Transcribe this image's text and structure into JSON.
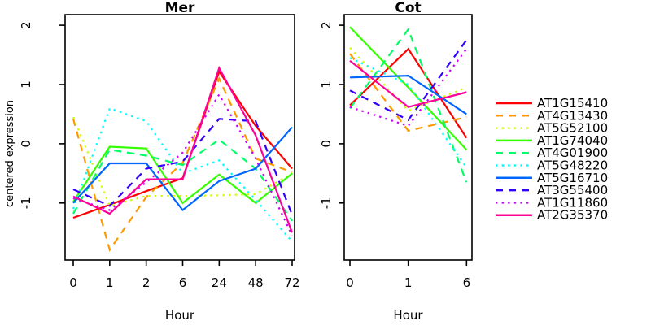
{
  "ylabel": "centered expression",
  "chart_data": [
    {
      "type": "line",
      "title": "Mer",
      "xlabel": "Hour",
      "ylabel": "centered expression",
      "x_tick_labels": [
        "0",
        "1",
        "2",
        "6",
        "24",
        "48",
        "72"
      ],
      "y_tick_labels": [
        "-1",
        "0",
        "1",
        "2"
      ],
      "y_ticks": [
        -1,
        0,
        1,
        2
      ],
      "ylim": [
        -1.95,
        2.2
      ],
      "grid": false,
      "series": [
        {
          "name": "AT1G15410",
          "color": "#FF0000",
          "linetype": "solid",
          "values": [
            -1.25,
            -1.03,
            -0.8,
            -0.58,
            1.22,
            0.3,
            -0.42
          ]
        },
        {
          "name": "AT4G13430",
          "color": "#FF9900",
          "linetype": "dashed",
          "values": [
            0.42,
            -1.79,
            -0.9,
            -0.32,
            1.1,
            -0.25,
            -0.48
          ]
        },
        {
          "name": "AT5G52100",
          "color": "#CCFF00",
          "linetype": "dotted",
          "values": [
            0.45,
            -1.05,
            -0.88,
            -0.88,
            -0.87,
            -0.85,
            -0.5
          ]
        },
        {
          "name": "AT1G74040",
          "color": "#33FF00",
          "linetype": "solid",
          "values": [
            -0.98,
            -0.05,
            -0.08,
            -1.0,
            -0.52,
            -1.0,
            -0.5
          ]
        },
        {
          "name": "AT4G01900",
          "color": "#00FF66",
          "linetype": "dashed",
          "values": [
            -1.18,
            -0.1,
            -0.2,
            -0.36,
            0.07,
            -0.42,
            -1.3
          ]
        },
        {
          "name": "AT5G48220",
          "color": "#00FFFF",
          "linetype": "dotted",
          "values": [
            -1.1,
            0.6,
            0.38,
            -0.5,
            -0.28,
            -0.95,
            -1.65
          ]
        },
        {
          "name": "AT5G16710",
          "color": "#0066FF",
          "linetype": "solid",
          "values": [
            -1.0,
            -0.33,
            -0.33,
            -1.12,
            -0.63,
            -0.42,
            0.28
          ]
        },
        {
          "name": "AT3G55400",
          "color": "#3300FF",
          "linetype": "dashed",
          "values": [
            -0.77,
            -1.05,
            -0.42,
            -0.3,
            0.42,
            0.38,
            -1.2
          ]
        },
        {
          "name": "AT1G11860",
          "color": "#CC00FF",
          "linetype": "dotted",
          "values": [
            -0.92,
            -1.12,
            -0.65,
            -0.15,
            0.83,
            -0.25,
            -1.55
          ]
        },
        {
          "name": "AT2G35370",
          "color": "#FF0099",
          "linetype": "solid",
          "values": [
            -0.89,
            -1.18,
            -0.6,
            -0.6,
            1.28,
            0.14,
            -1.5
          ]
        }
      ]
    },
    {
      "type": "line",
      "title": "Cot",
      "xlabel": "Hour",
      "ylabel": "centered expression",
      "x_tick_labels": [
        "0",
        "1",
        "6"
      ],
      "y_tick_labels": [
        "-1",
        "0",
        "1",
        "2"
      ],
      "y_ticks": [
        -1,
        0,
        1,
        2
      ],
      "ylim": [
        -1.95,
        2.2
      ],
      "grid": false,
      "series": [
        {
          "name": "AT1G15410",
          "color": "#FF0000",
          "linetype": "solid",
          "values": [
            0.65,
            1.6,
            0.1
          ]
        },
        {
          "name": "AT4G13430",
          "color": "#FF9900",
          "linetype": "dashed",
          "values": [
            1.52,
            0.22,
            0.45
          ]
        },
        {
          "name": "AT5G52100",
          "color": "#CCFF00",
          "linetype": "dotted",
          "values": [
            1.62,
            0.56,
            0.95
          ]
        },
        {
          "name": "AT1G74040",
          "color": "#33FF00",
          "linetype": "solid",
          "values": [
            1.97,
            0.95,
            -0.1
          ]
        },
        {
          "name": "AT4G01900",
          "color": "#00FF66",
          "linetype": "dashed",
          "values": [
            0.6,
            1.93,
            -0.65
          ]
        },
        {
          "name": "AT5G48220",
          "color": "#00FFFF",
          "linetype": "dotted",
          "values": [
            1.45,
            1.0,
            -0.4
          ]
        },
        {
          "name": "AT5G16710",
          "color": "#0066FF",
          "linetype": "solid",
          "values": [
            1.12,
            1.15,
            0.5
          ]
        },
        {
          "name": "AT3G55400",
          "color": "#3300FF",
          "linetype": "dashed",
          "values": [
            0.9,
            0.4,
            1.75
          ]
        },
        {
          "name": "AT1G11860",
          "color": "#CC00FF",
          "linetype": "dotted",
          "values": [
            0.62,
            0.3,
            1.6
          ]
        },
        {
          "name": "AT2G35370",
          "color": "#FF0099",
          "linetype": "solid",
          "values": [
            1.4,
            0.62,
            0.87
          ]
        }
      ]
    }
  ],
  "legend": {
    "position": "right",
    "entries": [
      {
        "label": "AT1G15410",
        "color": "#FF0000",
        "linetype": "solid"
      },
      {
        "label": "AT4G13430",
        "color": "#FF9900",
        "linetype": "dashed"
      },
      {
        "label": "AT5G52100",
        "color": "#CCFF00",
        "linetype": "dotted"
      },
      {
        "label": "AT1G74040",
        "color": "#33FF00",
        "linetype": "solid"
      },
      {
        "label": "AT4G01900",
        "color": "#00FF66",
        "linetype": "dashed"
      },
      {
        "label": "AT5G48220",
        "color": "#00FFFF",
        "linetype": "dotted"
      },
      {
        "label": "AT5G16710",
        "color": "#0066FF",
        "linetype": "solid"
      },
      {
        "label": "AT3G55400",
        "color": "#3300FF",
        "linetype": "dashed"
      },
      {
        "label": "AT1G11860",
        "color": "#CC00FF",
        "linetype": "dotted"
      },
      {
        "label": "AT2G35370",
        "color": "#FF0099",
        "linetype": "solid"
      }
    ]
  }
}
